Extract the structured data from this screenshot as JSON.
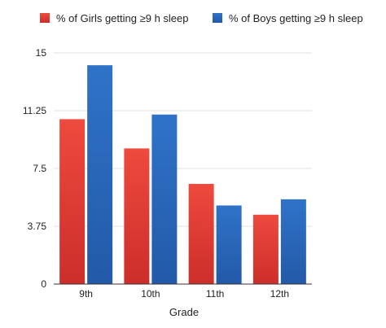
{
  "chart_data": {
    "type": "bar",
    "categories": [
      "9th",
      "10th",
      "11th",
      "12th"
    ],
    "series": [
      {
        "name": "% of Girls getting ≥9 h sleep",
        "color": "#e8413a",
        "values": [
          10.7,
          8.8,
          6.5,
          4.5
        ]
      },
      {
        "name": "% of Boys getting ≥9 h sleep",
        "color": "#2c6bc0",
        "values": [
          14.2,
          11.0,
          5.1,
          5.5
        ]
      }
    ],
    "title": "",
    "xlabel": "Grade",
    "ylabel": "",
    "ylim": [
      0,
      15
    ],
    "yticks": [
      0,
      3.75,
      7.5,
      11.25,
      15
    ],
    "ytick_labels": [
      "0",
      "3.75",
      "7.5",
      "11.25",
      "15"
    ],
    "grid": true,
    "legend_position": "top"
  }
}
